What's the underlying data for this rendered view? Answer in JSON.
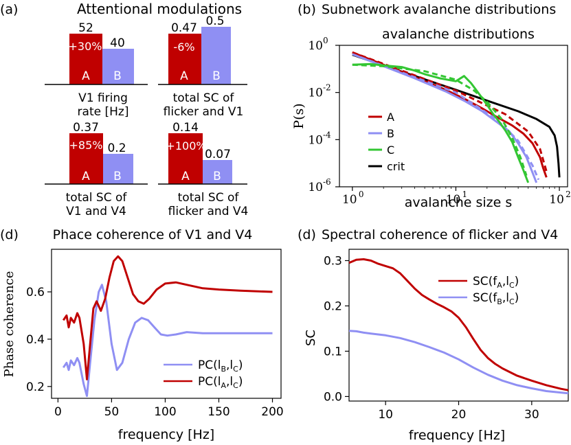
{
  "colors": {
    "red": "#c00000",
    "blue": "#8f8ff3",
    "green": "#33c633",
    "black": "#000000"
  },
  "panel_a": {
    "label": "(a)",
    "title": "Attentional modulations",
    "bars": [
      {
        "value_a": 52,
        "value_b": 40,
        "label_a": "52",
        "label_b": "40",
        "change": "+30%",
        "caption": [
          "V1 firing",
          "rate [Hz]"
        ]
      },
      {
        "value_a": 0.47,
        "value_b": 0.5,
        "label_a": "0.47",
        "label_b": "0.5",
        "change": "-6%",
        "caption": [
          "total SC of",
          "flicker and V1"
        ]
      },
      {
        "value_a": 0.37,
        "value_b": 0.2,
        "label_a": "0.37",
        "label_b": "0.2",
        "change": "+85%",
        "caption": [
          "total SC of",
          "V1 and V4"
        ]
      },
      {
        "value_a": 0.14,
        "value_b": 0.07,
        "label_a": "0.14",
        "label_b": "0.07",
        "change": "+100%",
        "caption": [
          "total SC of",
          "flicker and V4"
        ]
      }
    ],
    "bar_letters": [
      "A",
      "B"
    ]
  },
  "panel_b": {
    "label": "(b)",
    "heading": "Subnetwork avalanche distributions"
  },
  "panel_c": {
    "label": "(d)",
    "heading": "Phace coherence of V1 and V4"
  },
  "panel_d": {
    "label": "(d)",
    "heading": "Spectral coherence of flicker and V4"
  },
  "chart_data": [
    {
      "type": "bar",
      "title": "Attentional modulations",
      "categories": [
        "V1 firing rate [Hz]",
        "total SC of flicker and V1",
        "total SC of V1 and V4",
        "total SC of flicker and V4"
      ],
      "series": [
        {
          "name": "A",
          "values": [
            52,
            0.47,
            0.37,
            0.14
          ]
        },
        {
          "name": "B",
          "values": [
            40,
            0.5,
            0.2,
            0.07
          ]
        }
      ],
      "annotations": [
        "+30%",
        "-6%",
        "+85%",
        "+100%"
      ]
    },
    {
      "type": "line",
      "title": "avalanche distributions",
      "xlabel": "avalanche size s",
      "ylabel": "P(s)",
      "xscale": "log",
      "yscale": "log",
      "xlim": [
        0.75,
        120
      ],
      "ylim": [
        1e-06,
        1
      ],
      "xticks": [
        1,
        10,
        100
      ],
      "xtick_labels": [
        "10^0",
        "10^1",
        "10^2"
      ],
      "yticks": [
        1e-06,
        0.0001,
        0.01,
        1
      ],
      "ytick_labels": [
        "10^-6",
        "10^-4",
        "10^-2",
        "10^0"
      ],
      "legend": [
        "A",
        "B",
        "C",
        "crit"
      ],
      "legend_loc": "lower-left",
      "series": [
        {
          "name": "crit",
          "x": [
            1,
            2,
            5,
            10,
            20,
            40,
            60,
            80,
            90,
            95,
            98,
            100
          ],
          "y": [
            0.4,
            0.14,
            0.036,
            0.013,
            0.0045,
            0.0016,
            0.00075,
            0.00035,
            0.00015,
            5e-05,
            1e-05,
            2.5e-06
          ]
        },
        {
          "name": "A",
          "x": [
            1,
            2,
            4,
            8,
            12,
            18,
            25,
            35,
            45,
            55,
            65,
            70,
            75
          ],
          "y": [
            0.5,
            0.15,
            0.045,
            0.013,
            0.0055,
            0.0021,
            0.0009,
            0.0004,
            0.00018,
            7e-05,
            1.8e-05,
            6e-06,
            2.5e-06
          ]
        },
        {
          "name": "A fit",
          "dashed": true,
          "x": [
            1,
            10,
            30,
            50,
            65,
            75
          ],
          "y": [
            0.5,
            0.012,
            0.0012,
            0.00022,
            4e-05,
            4.5e-06
          ]
        },
        {
          "name": "B",
          "x": [
            1,
            2,
            4,
            8,
            12,
            18,
            25,
            33,
            40,
            48,
            55,
            60
          ],
          "y": [
            0.42,
            0.13,
            0.04,
            0.011,
            0.0045,
            0.0016,
            0.00055,
            0.00022,
            7e-05,
            1.8e-05,
            4e-06,
            1.5e-06
          ]
        },
        {
          "name": "B fit",
          "dashed": true,
          "x": [
            1,
            10,
            25,
            40,
            55,
            63
          ],
          "y": [
            0.42,
            0.01,
            0.0007,
            9e-05,
            8e-06,
            2e-06
          ]
        },
        {
          "name": "C",
          "x": [
            1,
            1.5,
            2,
            3,
            4,
            5,
            7,
            10,
            12,
            14,
            17,
            20,
            23,
            26,
            30,
            35,
            40,
            45,
            50
          ],
          "y": [
            0.15,
            0.16,
            0.14,
            0.12,
            0.085,
            0.06,
            0.04,
            0.03,
            0.05,
            0.025,
            0.008,
            0.003,
            0.0012,
            0.0006,
            0.00025,
            8e-05,
            1.8e-05,
            5e-06,
            1.5e-06
          ]
        },
        {
          "name": "C fit",
          "dashed": true,
          "x": [
            1,
            2,
            5,
            10,
            15,
            20,
            28,
            35,
            42,
            48
          ],
          "y": [
            0.15,
            0.13,
            0.08,
            0.035,
            0.012,
            0.004,
            0.0007,
            0.00012,
            1.8e-05,
            3e-06
          ]
        }
      ]
    },
    {
      "type": "line",
      "xlabel": "frequency [Hz]",
      "ylabel": "Phase coherence",
      "xlim": [
        -6,
        208
      ],
      "ylim": [
        0.15,
        0.78
      ],
      "xticks": [
        0,
        50,
        100,
        150,
        200
      ],
      "yticks": [
        0.2,
        0.4,
        0.6
      ],
      "legend_loc": "lower-right",
      "legend": [
        "PC(l_B,l_C)",
        "PC(l_A,l_C)"
      ],
      "series": [
        {
          "name": "PC(l_B,l_C)",
          "color": "blue",
          "x": [
            5,
            8,
            10,
            12,
            15,
            18,
            20,
            24,
            27,
            30,
            34,
            38,
            41,
            45,
            50,
            55,
            60,
            66,
            72,
            78,
            84,
            90,
            96,
            102,
            110,
            120,
            135,
            150,
            170,
            200
          ],
          "y": [
            0.28,
            0.3,
            0.27,
            0.31,
            0.29,
            0.32,
            0.3,
            0.21,
            0.16,
            0.3,
            0.48,
            0.6,
            0.63,
            0.56,
            0.38,
            0.27,
            0.3,
            0.4,
            0.47,
            0.49,
            0.48,
            0.45,
            0.42,
            0.415,
            0.42,
            0.43,
            0.425,
            0.425,
            0.425,
            0.425
          ]
        },
        {
          "name": "PC(l_A,l_C)",
          "color": "red",
          "x": [
            5,
            8,
            10,
            12,
            15,
            18,
            20,
            24,
            27,
            30,
            33,
            36,
            40,
            44,
            48,
            52,
            56,
            60,
            65,
            70,
            75,
            80,
            85,
            92,
            100,
            110,
            120,
            135,
            150,
            170,
            200
          ],
          "y": [
            0.48,
            0.5,
            0.45,
            0.49,
            0.47,
            0.51,
            0.49,
            0.38,
            0.23,
            0.38,
            0.53,
            0.56,
            0.52,
            0.57,
            0.66,
            0.73,
            0.75,
            0.73,
            0.66,
            0.59,
            0.56,
            0.55,
            0.57,
            0.61,
            0.635,
            0.64,
            0.63,
            0.615,
            0.61,
            0.605,
            0.6
          ]
        }
      ]
    },
    {
      "type": "line",
      "xlabel": "frequency [Hz]",
      "ylabel": "SC",
      "xlim": [
        5,
        35
      ],
      "ylim": [
        -0.01,
        0.325
      ],
      "xticks": [
        10,
        20,
        30
      ],
      "yticks": [
        0.0,
        0.1,
        0.2,
        0.3
      ],
      "legend_loc": "top-right",
      "legend": [
        "SC(f_A,l_C)",
        "SC(f_B,l_C)"
      ],
      "series": [
        {
          "name": "SC(f_A,l_C)",
          "color": "red",
          "x": [
            5,
            6,
            7,
            8,
            9,
            10,
            11,
            12,
            13,
            14,
            15,
            16,
            17,
            18,
            19,
            20,
            21,
            22,
            23,
            24,
            25,
            26,
            28,
            30,
            32,
            34,
            35
          ],
          "y": [
            0.295,
            0.302,
            0.303,
            0.3,
            0.293,
            0.288,
            0.283,
            0.272,
            0.255,
            0.238,
            0.224,
            0.214,
            0.205,
            0.197,
            0.188,
            0.174,
            0.153,
            0.127,
            0.103,
            0.085,
            0.072,
            0.062,
            0.046,
            0.035,
            0.025,
            0.017,
            0.014
          ]
        },
        {
          "name": "SC(f_B,l_C)",
          "color": "blue",
          "x": [
            5,
            6,
            7,
            8,
            9,
            10,
            12,
            14,
            16,
            18,
            20,
            22,
            24,
            26,
            28,
            30,
            32,
            35
          ],
          "y": [
            0.145,
            0.144,
            0.141,
            0.139,
            0.137,
            0.135,
            0.129,
            0.12,
            0.109,
            0.097,
            0.082,
            0.064,
            0.048,
            0.035,
            0.025,
            0.018,
            0.012,
            0.007
          ]
        }
      ]
    }
  ]
}
